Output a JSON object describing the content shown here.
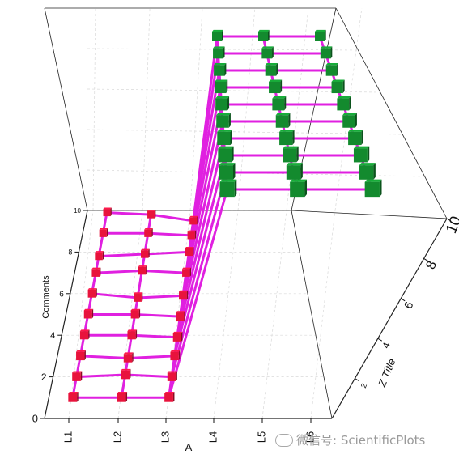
{
  "chart_data": {
    "type": "3d-line-scatter",
    "xlabel": "A",
    "ylabel": "Comments",
    "zlabel": "Z Title",
    "x_ticks": [
      "L1",
      "L2",
      "L3",
      "L4",
      "L5",
      "L6"
    ],
    "y_ticks": [
      "0",
      "2",
      "4",
      "6",
      "8",
      "10"
    ],
    "z_ticks": [
      "2",
      "4",
      "6",
      "8",
      "10"
    ],
    "ylim": [
      0,
      10
    ],
    "zlim": [
      0,
      10
    ],
    "grid": true,
    "series": [
      {
        "color": "#e8133c",
        "marker": "cube",
        "points": [
          {
            "x": "L1",
            "y": 1.0,
            "z": 0
          },
          {
            "x": "L2",
            "y": 1.0,
            "z": 0
          },
          {
            "x": "L3",
            "y": 1.0,
            "z": 0
          },
          {
            "x": "L1",
            "y": 2.0,
            "z": 0
          },
          {
            "x": "L2",
            "y": 2.1,
            "z": 0
          },
          {
            "x": "L3",
            "y": 2.0,
            "z": 0
          },
          {
            "x": "L1",
            "y": 3.0,
            "z": 0
          },
          {
            "x": "L2",
            "y": 2.9,
            "z": 0
          },
          {
            "x": "L3",
            "y": 3.0,
            "z": 0
          },
          {
            "x": "L1",
            "y": 4.0,
            "z": 0
          },
          {
            "x": "L2",
            "y": 4.0,
            "z": 0
          },
          {
            "x": "L3",
            "y": 3.9,
            "z": 0
          },
          {
            "x": "L1",
            "y": 5.0,
            "z": 0
          },
          {
            "x": "L2",
            "y": 5.0,
            "z": 0
          },
          {
            "x": "L3",
            "y": 4.9,
            "z": 0
          },
          {
            "x": "L1",
            "y": 6.0,
            "z": 0
          },
          {
            "x": "L2",
            "y": 5.8,
            "z": 0
          },
          {
            "x": "L3",
            "y": 5.9,
            "z": 0
          },
          {
            "x": "L1",
            "y": 7.0,
            "z": 0
          },
          {
            "x": "L2",
            "y": 7.1,
            "z": 0
          },
          {
            "x": "L3",
            "y": 7.0,
            "z": 0
          },
          {
            "x": "L1",
            "y": 7.8,
            "z": 0
          },
          {
            "x": "L2",
            "y": 7.9,
            "z": 0
          },
          {
            "x": "L3",
            "y": 8.0,
            "z": 0
          },
          {
            "x": "L1",
            "y": 8.9,
            "z": 0
          },
          {
            "x": "L2",
            "y": 8.9,
            "z": 0
          },
          {
            "x": "L3",
            "y": 8.8,
            "z": 0
          },
          {
            "x": "L1",
            "y": 9.9,
            "z": 0
          },
          {
            "x": "L2",
            "y": 9.8,
            "z": 0
          },
          {
            "x": "L3",
            "y": 9.5,
            "z": 0
          }
        ]
      },
      {
        "color": "#138a2e",
        "marker": "cube",
        "points": [
          {
            "x": "L4",
            "y": 1.0,
            "z": 10
          },
          {
            "x": "L5",
            "y": 1.0,
            "z": 10
          },
          {
            "x": "L6",
            "y": 1.0,
            "z": 10
          },
          {
            "x": "L4",
            "y": 2.0,
            "z": 10
          },
          {
            "x": "L5",
            "y": 2.0,
            "z": 10
          },
          {
            "x": "L6",
            "y": 2.0,
            "z": 10
          },
          {
            "x": "L4",
            "y": 3.0,
            "z": 10
          },
          {
            "x": "L5",
            "y": 3.0,
            "z": 10
          },
          {
            "x": "L6",
            "y": 3.0,
            "z": 10
          },
          {
            "x": "L4",
            "y": 4.0,
            "z": 10
          },
          {
            "x": "L5",
            "y": 4.0,
            "z": 10
          },
          {
            "x": "L6",
            "y": 4.0,
            "z": 10
          },
          {
            "x": "L4",
            "y": 5.0,
            "z": 10
          },
          {
            "x": "L5",
            "y": 5.0,
            "z": 10
          },
          {
            "x": "L6",
            "y": 5.0,
            "z": 10
          },
          {
            "x": "L4",
            "y": 6.0,
            "z": 10
          },
          {
            "x": "L5",
            "y": 6.0,
            "z": 10
          },
          {
            "x": "L6",
            "y": 6.0,
            "z": 10
          },
          {
            "x": "L4",
            "y": 7.0,
            "z": 10
          },
          {
            "x": "L5",
            "y": 7.0,
            "z": 10
          },
          {
            "x": "L6",
            "y": 7.0,
            "z": 10
          },
          {
            "x": "L4",
            "y": 8.0,
            "z": 10
          },
          {
            "x": "L5",
            "y": 8.0,
            "z": 10
          },
          {
            "x": "L6",
            "y": 8.0,
            "z": 10
          },
          {
            "x": "L4",
            "y": 9.0,
            "z": 10
          },
          {
            "x": "L5",
            "y": 9.0,
            "z": 10
          },
          {
            "x": "L6",
            "y": 9.0,
            "z": 10
          },
          {
            "x": "L4",
            "y": 10.0,
            "z": 10
          },
          {
            "x": "L5",
            "y": 10.0,
            "z": 10
          },
          {
            "x": "L6",
            "y": 10.0,
            "z": 10
          }
        ]
      }
    ],
    "line_color": "#e020e0"
  },
  "watermark": {
    "text": "微信号: ScientificPlots"
  }
}
